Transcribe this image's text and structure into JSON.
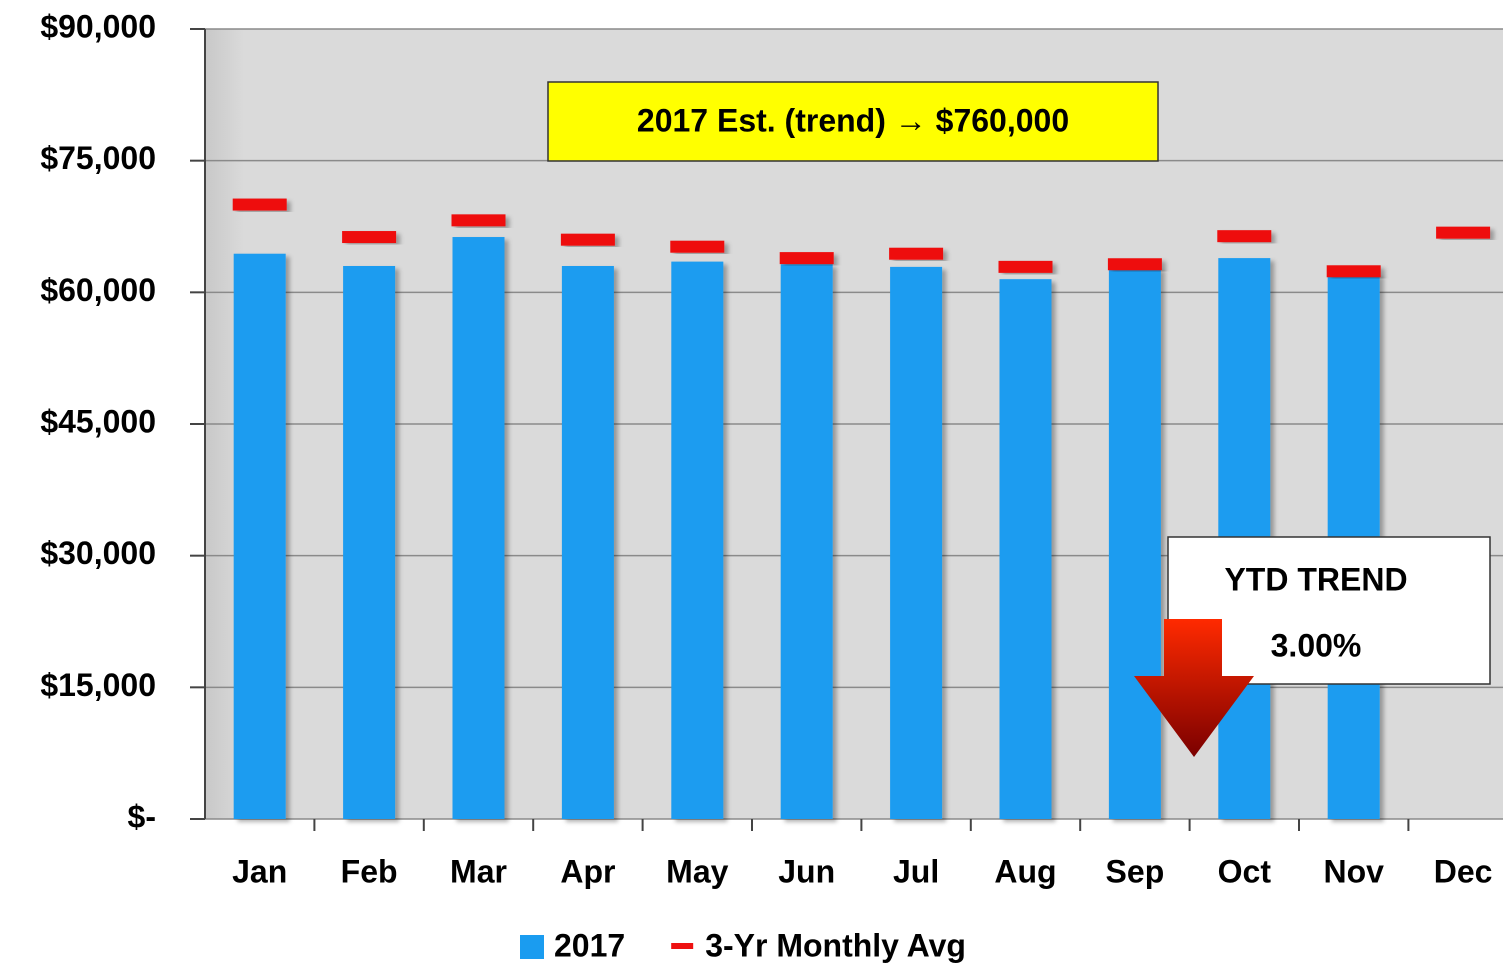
{
  "chart_data": {
    "type": "bar",
    "categories": [
      "Jan",
      "Feb",
      "Mar",
      "Apr",
      "May",
      "Jun",
      "Jul",
      "Aug",
      "Sep",
      "Oct",
      "Nov",
      "Dec"
    ],
    "series": [
      {
        "name": "2017",
        "color": "#1a9cf0",
        "values": [
          64400,
          63000,
          66300,
          63000,
          63500,
          63200,
          62900,
          61500,
          62800,
          63900,
          62100,
          null
        ]
      },
      {
        "name": "3-Yr Monthly Avg",
        "color": "#ee1111",
        "style": "dash",
        "values": [
          70000,
          66300,
          68200,
          66000,
          65200,
          63900,
          64400,
          62900,
          63200,
          66400,
          62400,
          66800
        ]
      }
    ],
    "ylim": [
      0,
      90000
    ],
    "yticks": [
      {
        "value": 0,
        "label": "$-"
      },
      {
        "value": 15000,
        "label": "$15,000"
      },
      {
        "value": 30000,
        "label": "$30,000"
      },
      {
        "value": 45000,
        "label": "$45,000"
      },
      {
        "value": 60000,
        "label": "$60,000"
      },
      {
        "value": 75000,
        "label": "$75,000"
      },
      {
        "value": 90000,
        "label": "$90,000"
      }
    ],
    "grid": true,
    "legend": "bottom",
    "annotations": [
      "2017 Est. (trend) → $760,000",
      "YTD TREND",
      "3.00%"
    ]
  }
}
